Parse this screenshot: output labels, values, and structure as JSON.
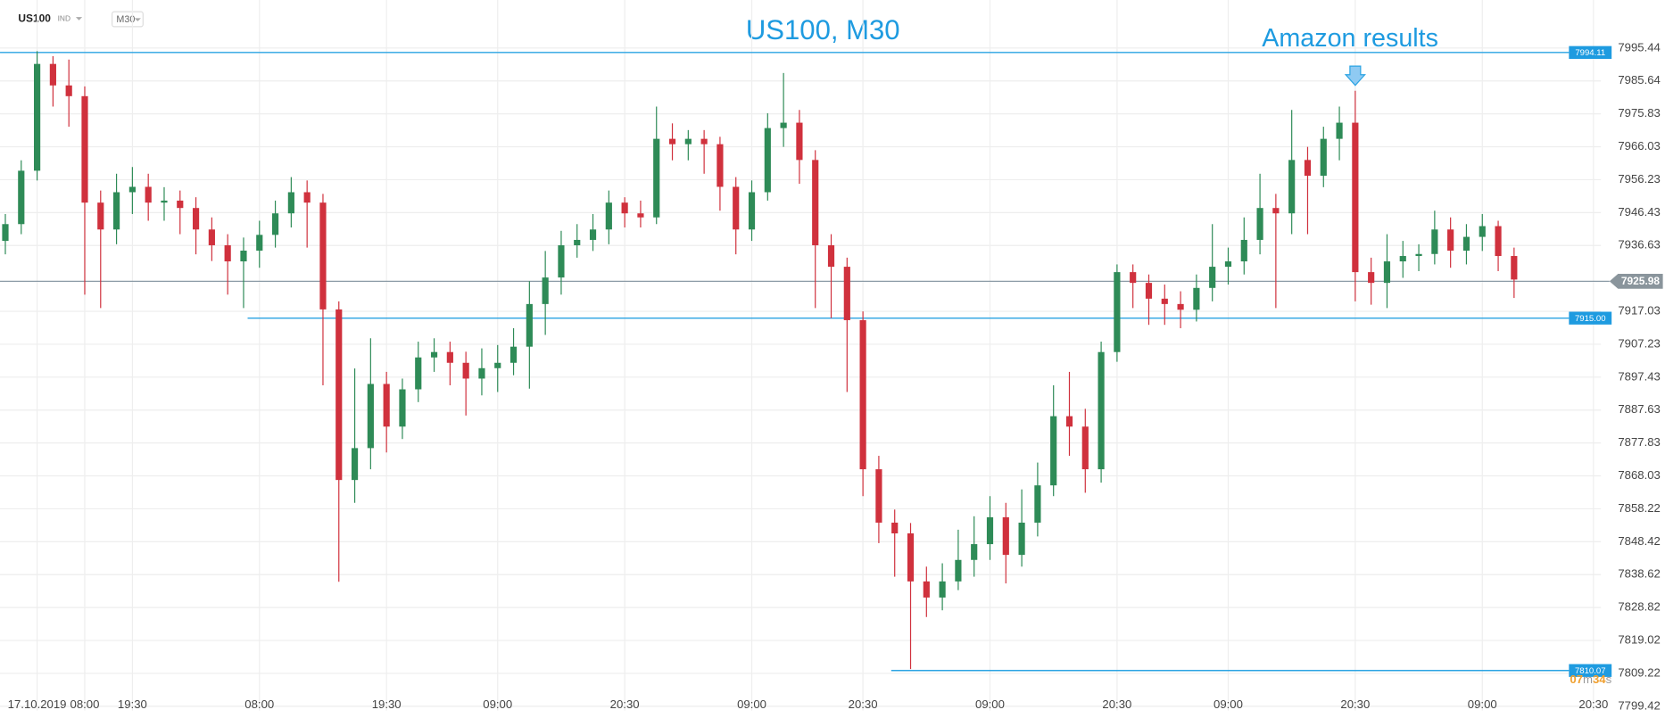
{
  "chart_data": {
    "type": "candlestick",
    "symbol": "US100",
    "instrument_type": "IND",
    "timeframe": "M30",
    "title": "US100, M30",
    "annotation": {
      "text": "Amazon results",
      "index": 85
    },
    "categories": [
      null,
      null,
      "17.10.2019",
      null,
      null,
      "08:00",
      null,
      null,
      "19:30",
      null,
      null,
      null,
      null,
      null,
      null,
      null,
      "08:00",
      null,
      null,
      null,
      null,
      null,
      null,
      null,
      "19:30",
      null,
      null,
      null,
      null,
      null,
      null,
      "09:00",
      null,
      null,
      null,
      null,
      null,
      null,
      null,
      "20:30",
      null,
      null,
      null,
      null,
      null,
      null,
      null,
      "09:00",
      null,
      null,
      null,
      null,
      null,
      null,
      "20:30",
      null,
      null,
      null,
      null,
      null,
      null,
      null,
      "09:00",
      null,
      null,
      null,
      null,
      null,
      null,
      null,
      "20:30",
      null,
      null,
      null,
      null,
      null,
      null,
      "09:00",
      null,
      null,
      null,
      null,
      null,
      null,
      null,
      "20:30",
      null,
      null,
      null,
      null,
      null,
      null,
      null,
      "09:00",
      null,
      null,
      null,
      null,
      null,
      null,
      "20:30"
    ],
    "open": [
      7938.0,
      7943.0,
      7958.9,
      7990.7,
      7984.3,
      7981.1,
      7949.4,
      7941.4,
      7952.5,
      7954.1,
      7949.4,
      7950.0,
      7947.8,
      7941.4,
      7936.7,
      7931.9,
      7935.1,
      7939.8,
      7946.2,
      7952.5,
      7949.4,
      7917.6,
      7866.8,
      7876.3,
      7895.4,
      7882.7,
      7893.8,
      7903.3,
      7904.9,
      7901.7,
      7897.0,
      7900.1,
      7901.7,
      7906.5,
      7919.2,
      7927.1,
      7936.7,
      7938.3,
      7941.4,
      7949.4,
      7946.2,
      7945.0,
      7968.4,
      7966.8,
      7968.4,
      7966.8,
      7954.1,
      7941.4,
      7952.5,
      7971.6,
      7973.2,
      7962.1,
      7936.7,
      7930.3,
      7914.4,
      7870.0,
      7854.1,
      7850.9,
      7836.6,
      7831.8,
      7836.6,
      7843.0,
      7847.7,
      7855.7,
      7844.5,
      7854.1,
      7865.2,
      7885.8,
      7882.7,
      7870.0,
      7904.9,
      7928.7,
      7925.5,
      7920.8,
      7919.2,
      7917.5,
      7924.0,
      7930.3,
      7931.9,
      7938.3,
      7947.8,
      7946.2,
      7962.1,
      7957.4,
      7968.4,
      7973.2,
      7928.7,
      7925.5,
      7931.9,
      7933.5,
      7934.1,
      7941.4,
      7935.1,
      7939.2,
      7942.4,
      7933.5,
      null,
      null,
      null,
      null,
      null
    ],
    "high": [
      7946,
      7962,
      7994.5,
      7993,
      7992,
      7984,
      7953,
      7958,
      7960,
      7958,
      7954,
      7953,
      7951,
      7945,
      7940,
      7939,
      7944,
      7950,
      7957,
      7956,
      7952,
      7920,
      7900,
      7909,
      7899,
      7897,
      7908,
      7909,
      7908,
      7905,
      7906,
      7907,
      7912,
      7926,
      7935,
      7941,
      7943,
      7946,
      7953,
      7951,
      7950,
      7978,
      7973,
      7971,
      7971,
      7969,
      7957,
      7956,
      7976,
      7988,
      7977,
      7965,
      7940,
      7933,
      7917,
      7874,
      7858,
      7854,
      7841,
      7842,
      7852,
      7856,
      7862,
      7860,
      7864,
      7872,
      7895,
      7899,
      7888,
      7908,
      7931,
      7931,
      7928,
      7925,
      7923,
      7928,
      7943,
      7936,
      7945,
      7958,
      7952,
      7977,
      7966,
      7972,
      7978,
      7982.7,
      7933,
      7940,
      7938,
      7937,
      7947,
      7945,
      7943,
      7946,
      7944,
      7936,
      null,
      null,
      null,
      null,
      null
    ],
    "low": [
      7934,
      7940,
      7956,
      7978,
      7972,
      7922,
      7918,
      7937,
      7946,
      7944,
      7944,
      7940,
      7934,
      7932,
      7922,
      7918,
      7930,
      7936,
      7942,
      7936,
      7895,
      7836.5,
      7860,
      7870,
      7875,
      7879,
      7890,
      7899,
      7895,
      7886,
      7892,
      7893,
      7898,
      7894,
      7910,
      7922,
      7933,
      7935,
      7937,
      7942,
      7942,
      7943,
      7962,
      7962,
      7958,
      7947,
      7934,
      7938,
      7950,
      7966,
      7955,
      7918,
      7915,
      7893,
      7862,
      7848,
      7838,
      7810.5,
      7826,
      7828,
      7834,
      7838,
      7843,
      7836,
      7841,
      7850,
      7862,
      7874,
      7863,
      7866,
      7902,
      7918,
      7913,
      7913,
      7912,
      7914,
      7920,
      7925,
      7928,
      7934,
      7918,
      7940,
      7940,
      7954,
      7962,
      7920,
      7919,
      7918,
      7927,
      7929,
      7931,
      7930,
      7931,
      7935,
      7929,
      7921,
      null,
      null,
      null,
      null,
      null
    ],
    "close": [
      7943.0,
      7958.9,
      7990.7,
      7984.3,
      7981.1,
      7949.4,
      7941.4,
      7952.5,
      7954.1,
      7949.4,
      7950.0,
      7947.8,
      7941.4,
      7936.7,
      7931.9,
      7935.1,
      7939.8,
      7946.2,
      7952.5,
      7949.4,
      7917.6,
      7866.8,
      7876.3,
      7895.4,
      7882.7,
      7893.8,
      7903.3,
      7904.9,
      7901.7,
      7897.0,
      7900.1,
      7901.7,
      7906.5,
      7919.2,
      7927.1,
      7936.7,
      7938.3,
      7941.4,
      7949.4,
      7946.2,
      7945.0,
      7968.4,
      7966.8,
      7968.4,
      7966.8,
      7954.1,
      7941.4,
      7952.5,
      7971.6,
      7973.2,
      7962.1,
      7936.7,
      7930.3,
      7914.4,
      7870.0,
      7854.1,
      7850.9,
      7836.6,
      7831.8,
      7836.6,
      7843.0,
      7847.7,
      7855.7,
      7844.5,
      7854.1,
      7865.2,
      7885.8,
      7882.7,
      7870.0,
      7904.9,
      7928.7,
      7925.5,
      7920.8,
      7919.2,
      7917.5,
      7924.0,
      7930.3,
      7931.9,
      7938.3,
      7947.8,
      7946.2,
      7962.1,
      7957.4,
      7968.4,
      7973.2,
      7928.7,
      7925.5,
      7931.9,
      7933.5,
      7934.1,
      7941.4,
      7935.1,
      7939.2,
      7942.4,
      7933.5,
      7926.5,
      null,
      null,
      null,
      null,
      null
    ],
    "up_color": "#2e8b57",
    "down_color": "#d0313d",
    "ylim": [
      7799.42,
      7995.44
    ],
    "yticks": [
      7995.44,
      7985.64,
      7975.83,
      7966.03,
      7956.23,
      7946.43,
      7936.63,
      7917.03,
      7907.23,
      7897.43,
      7887.63,
      7877.83,
      7868.03,
      7858.22,
      7848.42,
      7838.62,
      7828.82,
      7819.02,
      7809.22,
      7799.42
    ],
    "grid": true,
    "levels": [
      7994.11,
      {
        "value": 7915,
        "label": "7915.00"
      },
      7810.07
    ],
    "level_color": "#2aa3e3",
    "last_price": 7925.98,
    "countdown": [
      "07",
      "m",
      "34",
      "s"
    ]
  }
}
